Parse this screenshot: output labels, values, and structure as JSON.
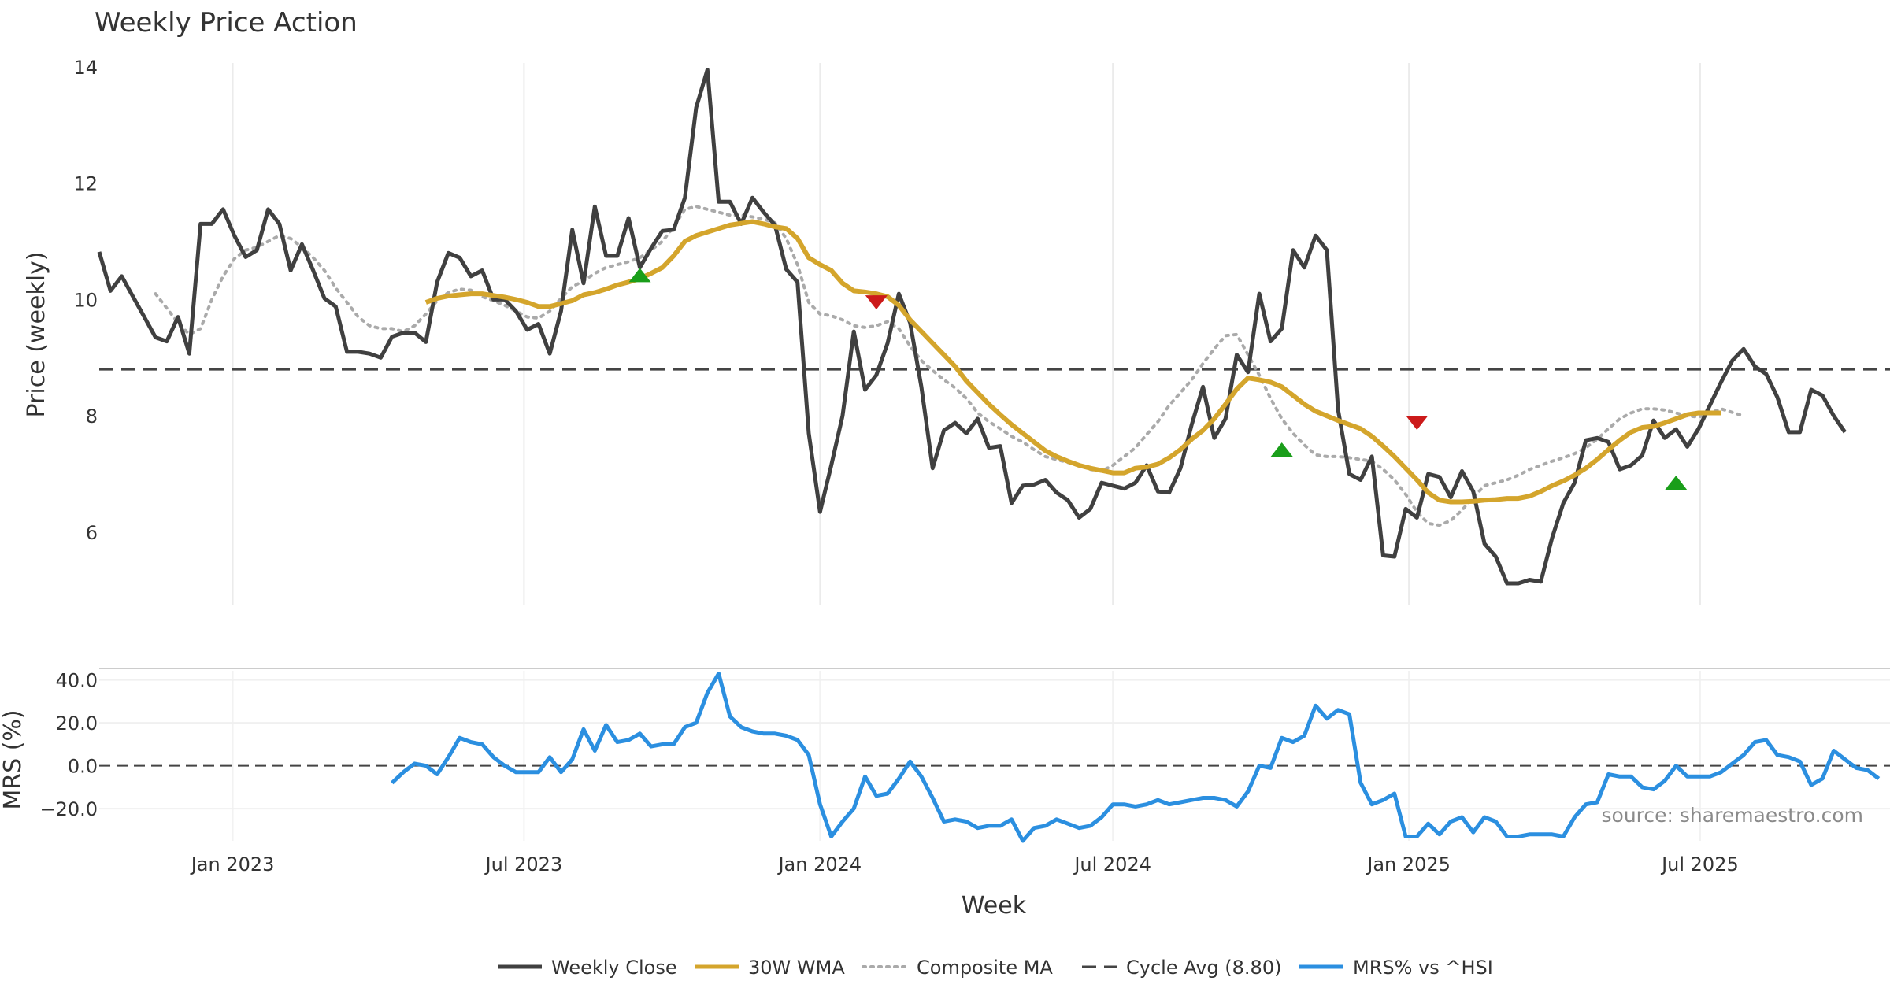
{
  "chart_data": {
    "type": "line",
    "title": "Weekly Price Action",
    "xlabel": "Week",
    "source": "source: sharemaestro.com",
    "grid": true,
    "legend_placement": "bottom-center",
    "x_ticks": [
      "Jan 2023",
      "Jul 2023",
      "Jan 2024",
      "Jul 2024",
      "Jan 2025",
      "Jul 2025"
    ],
    "x_range": [
      "2022-10-10",
      "2025-10-27"
    ],
    "colors": {
      "close": "#404040",
      "wma": "#d4a52c",
      "composite": "#aaaaaa",
      "cycle": "#444444",
      "mrs": "#2b8fe0",
      "buy": "#1a9e1a",
      "sell": "#cc1a1a"
    },
    "price_panel": {
      "ylabel": "Price (weekly)",
      "ylim": [
        4.7,
        14.5
      ],
      "y_ticks": [
        "6",
        "8",
        "10",
        "12",
        "14"
      ],
      "cycle_avg": 8.8,
      "close": [
        10.82,
        10.15,
        10.4,
        10.05,
        9.7,
        9.35,
        9.28,
        9.7,
        9.07,
        11.3,
        11.3,
        11.55,
        11.1,
        10.73,
        10.85,
        11.55,
        11.3,
        10.5,
        10.95,
        10.5,
        10.02,
        9.88,
        9.1,
        9.1,
        9.07,
        9.0,
        9.36,
        9.43,
        9.43,
        9.27,
        10.3,
        10.8,
        10.72,
        10.4,
        10.5,
        10.0,
        10.0,
        9.8,
        9.48,
        9.58,
        9.07,
        9.8,
        11.2,
        10.28,
        11.6,
        10.75,
        10.75,
        11.4,
        10.55,
        10.88,
        11.18,
        11.2,
        11.75,
        13.3,
        13.95,
        11.68,
        11.68,
        11.3,
        11.75,
        11.5,
        11.28,
        10.52,
        10.3,
        7.7,
        6.35,
        7.15,
        8.0,
        9.45,
        8.45,
        8.7,
        9.25,
        10.1,
        9.6,
        8.5,
        7.1,
        7.75,
        7.88,
        7.7,
        7.95,
        7.45,
        7.48,
        6.5,
        6.8,
        6.82,
        6.9,
        6.68,
        6.55,
        6.25,
        6.4,
        6.85,
        6.8,
        6.75,
        6.85,
        7.15,
        6.7,
        6.68,
        7.1,
        7.85,
        8.5,
        7.62,
        7.95,
        9.05,
        8.75,
        10.1,
        9.28,
        9.5,
        10.85,
        10.55,
        11.1,
        10.85,
        8.1,
        7.0,
        6.9,
        7.3,
        5.6,
        5.58,
        6.4,
        6.25,
        7.0,
        6.95,
        6.6,
        7.05,
        6.7,
        5.8,
        5.58,
        5.12,
        5.12,
        5.18,
        5.15,
        5.9,
        6.5,
        6.85,
        7.58,
        7.62,
        7.55,
        7.08,
        7.15,
        7.32,
        7.92,
        7.62,
        7.77,
        7.47,
        7.78,
        8.18,
        8.58,
        8.95,
        9.15,
        8.85,
        8.72,
        8.32,
        7.72,
        7.72,
        8.45,
        8.35,
        8.0,
        7.72
      ],
      "wma": [
        null,
        null,
        null,
        null,
        null,
        null,
        null,
        null,
        null,
        null,
        null,
        null,
        null,
        null,
        null,
        null,
        null,
        null,
        null,
        null,
        null,
        null,
        null,
        null,
        null,
        null,
        null,
        null,
        null,
        9.95,
        10.02,
        10.06,
        10.08,
        10.1,
        10.1,
        10.07,
        10.04,
        10.0,
        9.95,
        9.88,
        9.88,
        9.93,
        9.98,
        10.08,
        10.12,
        10.18,
        10.25,
        10.3,
        10.36,
        10.45,
        10.55,
        10.75,
        11.0,
        11.1,
        11.16,
        11.22,
        11.28,
        11.31,
        11.34,
        11.3,
        11.25,
        11.22,
        11.05,
        10.72,
        10.6,
        10.5,
        10.28,
        10.15,
        10.13,
        10.1,
        10.05,
        9.9,
        9.65,
        9.45,
        9.25,
        9.05,
        8.85,
        8.6,
        8.4,
        8.2,
        8.02,
        7.85,
        7.7,
        7.55,
        7.4,
        7.3,
        7.22,
        7.15,
        7.1,
        7.06,
        7.02,
        7.02,
        7.1,
        7.12,
        7.17,
        7.28,
        7.42,
        7.6,
        7.75,
        7.95,
        8.2,
        8.46,
        8.65,
        8.62,
        8.58,
        8.5,
        8.35,
        8.2,
        8.08,
        8.0,
        7.92,
        7.85,
        7.78,
        7.65,
        7.48,
        7.3,
        7.1,
        6.9,
        6.68,
        6.55,
        6.52,
        6.52,
        6.53,
        6.55,
        6.56,
        6.58,
        6.58,
        6.62,
        6.7,
        6.8,
        6.88,
        6.98,
        7.1,
        7.25,
        7.42,
        7.58,
        7.72,
        7.8,
        7.82,
        7.88,
        7.95,
        8.02,
        8.05,
        8.05,
        8.05
      ],
      "composite": [
        null,
        null,
        null,
        null,
        null,
        10.1,
        9.85,
        9.6,
        9.4,
        9.5,
        10.0,
        10.4,
        10.7,
        10.85,
        10.9,
        11.0,
        11.1,
        11.05,
        10.9,
        10.72,
        10.5,
        10.2,
        9.95,
        9.7,
        9.55,
        9.5,
        9.5,
        9.45,
        9.55,
        9.75,
        9.98,
        10.12,
        10.18,
        10.16,
        10.05,
        9.98,
        9.9,
        9.8,
        9.7,
        9.68,
        9.8,
        10.02,
        10.22,
        10.32,
        10.45,
        10.55,
        10.6,
        10.65,
        10.72,
        10.85,
        11.0,
        11.25,
        11.55,
        11.6,
        11.55,
        11.5,
        11.45,
        11.45,
        11.42,
        11.38,
        11.32,
        11.05,
        10.6,
        9.95,
        9.75,
        9.72,
        9.65,
        9.55,
        9.52,
        9.55,
        9.62,
        9.5,
        9.2,
        8.95,
        8.78,
        8.62,
        8.48,
        8.3,
        8.05,
        7.9,
        7.78,
        7.65,
        7.55,
        7.42,
        7.3,
        7.25,
        7.2,
        7.15,
        7.08,
        7.05,
        7.15,
        7.3,
        7.45,
        7.68,
        7.9,
        8.18,
        8.4,
        8.62,
        8.9,
        9.15,
        9.38,
        9.4,
        9.05,
        8.7,
        8.3,
        7.95,
        7.7,
        7.5,
        7.33,
        7.3,
        7.3,
        7.28,
        7.25,
        7.22,
        7.08,
        6.9,
        6.65,
        6.35,
        6.15,
        6.12,
        6.2,
        6.38,
        6.6,
        6.8,
        6.85,
        6.9,
        6.98,
        7.08,
        7.15,
        7.22,
        7.28,
        7.35,
        7.45,
        7.6,
        7.78,
        7.95,
        8.05,
        8.12,
        8.12,
        8.1,
        8.05,
        8.0,
        7.98,
        8.05,
        8.12,
        8.06,
        8.0
      ]
    },
    "mrs_panel": {
      "ylabel": "MRS (%)",
      "ylim": [
        -35,
        45
      ],
      "y_ticks": [
        "−20.0",
        "0.0",
        "20.0",
        "40.0"
      ],
      "zero_line": 0,
      "values": [
        null,
        null,
        null,
        null,
        null,
        null,
        null,
        null,
        null,
        null,
        null,
        null,
        null,
        null,
        null,
        null,
        null,
        null,
        null,
        null,
        null,
        null,
        null,
        null,
        null,
        null,
        -8,
        -3,
        1,
        0,
        -4,
        4,
        13,
        11,
        10,
        4,
        0,
        -3,
        -3,
        -3,
        4,
        -3,
        3,
        17,
        7,
        19,
        11,
        12,
        15,
        9,
        10,
        10,
        18,
        20,
        34,
        43,
        23,
        18,
        16,
        15,
        15,
        14,
        12,
        5,
        -18,
        -33,
        -26,
        -20,
        -5,
        -14,
        -13,
        -6,
        2,
        -5,
        -15,
        -26,
        -25,
        -26,
        -29,
        -28,
        -28,
        -25,
        -35,
        -29,
        -28,
        -25,
        -27,
        -29,
        -28,
        -24,
        -18,
        -18,
        -19,
        -18,
        -16,
        -18,
        -17,
        -16,
        -15,
        -15,
        -16,
        -19,
        -12,
        0,
        -1,
        13,
        11,
        14,
        28,
        22,
        26,
        24,
        -8,
        -18,
        -16,
        -13,
        -33,
        -33,
        -27,
        -32,
        -26,
        -24,
        -31,
        -24,
        -26,
        -33,
        -33,
        -32,
        -32,
        -32,
        -33,
        -24,
        -18,
        -17,
        -4,
        -5,
        -5,
        -10,
        -11,
        -7,
        0,
        -5,
        -5,
        -5,
        -3,
        1,
        5,
        11,
        12,
        5,
        4,
        2,
        -9,
        -6,
        7,
        3,
        -1,
        -2,
        -6
      ]
    },
    "signals": [
      {
        "type": "buy",
        "date": "2023-09-11",
        "value": 10.42
      },
      {
        "type": "sell",
        "date": "2024-02-05",
        "value": 9.95
      },
      {
        "type": "buy",
        "date": "2024-10-14",
        "value": 7.42
      },
      {
        "type": "sell",
        "date": "2025-01-06",
        "value": 7.88
      },
      {
        "type": "buy",
        "date": "2025-06-16",
        "value": 6.85
      }
    ],
    "legend": [
      "Weekly Close",
      "30W WMA",
      "Composite MA",
      "Cycle Avg (8.80)",
      "MRS% vs ^HSI"
    ]
  }
}
